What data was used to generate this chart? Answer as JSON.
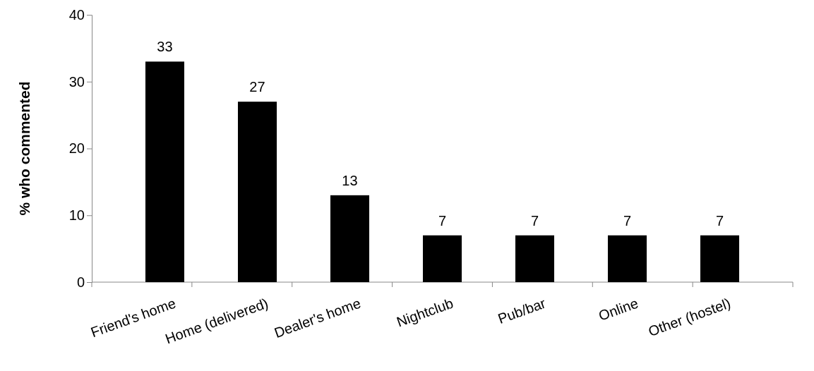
{
  "chart_data": {
    "type": "bar",
    "ylabel": "% who commented",
    "categories": [
      "Friend's home",
      "Home (delivered)",
      "Dealer's home",
      "Nightclub",
      "Pub/bar",
      "Online",
      "Other (hostel)"
    ],
    "values": [
      33,
      27,
      13,
      7,
      7,
      7,
      7
    ],
    "color": "#000000",
    "ylim": [
      0,
      40
    ],
    "yticks": [
      0,
      10,
      20,
      30,
      40
    ],
    "grid": false,
    "data_labels": true
  }
}
